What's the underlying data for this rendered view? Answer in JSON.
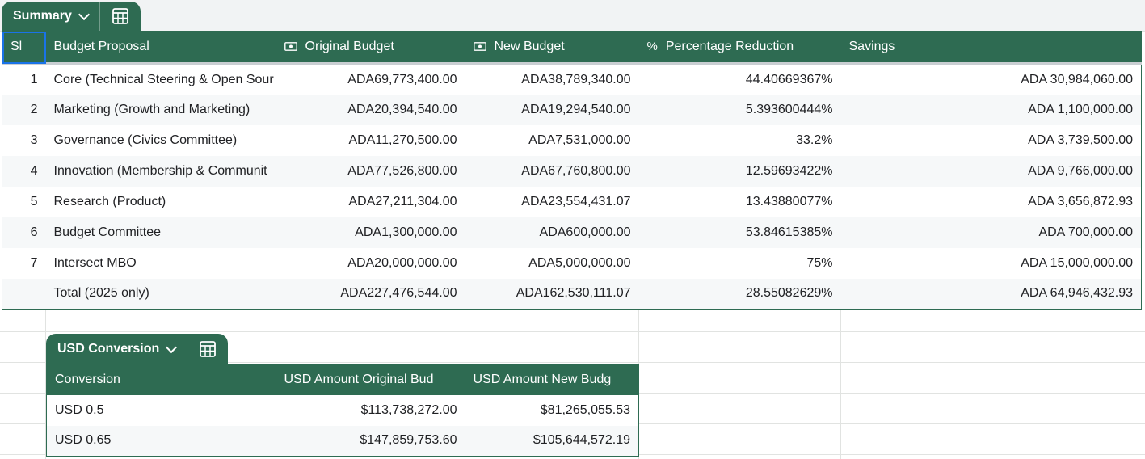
{
  "summary": {
    "tab_name": "Summary",
    "headers": {
      "sl": "Sl",
      "proposal": "Budget Proposal",
      "original": "Original Budget",
      "new": "New Budget",
      "reduction": "Percentage Reduction",
      "savings": "Savings",
      "reduction_symbol": "%"
    },
    "rows": [
      {
        "sl": "1",
        "proposal": "Core (Technical Steering & Open Sour",
        "original": "ADA69,773,400.00",
        "new": "ADA38,789,340.00",
        "reduction": "44.40669367%",
        "savings": "ADA 30,984,060.00"
      },
      {
        "sl": "2",
        "proposal": "Marketing (Growth and Marketing)",
        "original": "ADA20,394,540.00",
        "new": "ADA19,294,540.00",
        "reduction": "5.393600444%",
        "savings": "ADA 1,100,000.00"
      },
      {
        "sl": "3",
        "proposal": "Governance (Civics Committee)",
        "original": "ADA11,270,500.00",
        "new": "ADA7,531,000.00",
        "reduction": "33.2%",
        "savings": "ADA 3,739,500.00"
      },
      {
        "sl": "4",
        "proposal": "Innovation (Membership & Communit",
        "original": "ADA77,526,800.00",
        "new": "ADA67,760,800.00",
        "reduction": "12.59693422%",
        "savings": "ADA 9,766,000.00"
      },
      {
        "sl": "5",
        "proposal": "Research (Product)",
        "original": "ADA27,211,304.00",
        "new": "ADA23,554,431.07",
        "reduction": "13.43880077%",
        "savings": "ADA 3,656,872.93"
      },
      {
        "sl": "6",
        "proposal": "Budget Committee",
        "original": "ADA1,300,000.00",
        "new": "ADA600,000.00",
        "reduction": "53.84615385%",
        "savings": "ADA 700,000.00"
      },
      {
        "sl": "7",
        "proposal": "Intersect MBO",
        "original": "ADA20,000,000.00",
        "new": "ADA5,000,000.00",
        "reduction": "75%",
        "savings": "ADA 15,000,000.00"
      },
      {
        "sl": "",
        "proposal": "Total (2025 only)",
        "original": "ADA227,476,544.00",
        "new": "ADA162,530,111.07",
        "reduction": "28.55082629%",
        "savings": "ADA 64,946,432.93"
      }
    ]
  },
  "usd": {
    "tab_name": "USD Conversion",
    "headers": {
      "conversion": "Conversion",
      "usd_original": "USD Amount Original Bud",
      "usd_new": "USD Amount New Budg"
    },
    "rows": [
      {
        "conversion": "USD 0.5",
        "usd_original": "$113,738,272.00",
        "usd_new": "$81,265,055.53"
      },
      {
        "conversion": "USD 0.65",
        "usd_original": "$147,859,753.60",
        "usd_new": "$105,644,572.19"
      }
    ]
  },
  "colors": {
    "header_bg": "#2e6b52",
    "band": "#f6f8f9",
    "selection": "#1a73e8"
  }
}
